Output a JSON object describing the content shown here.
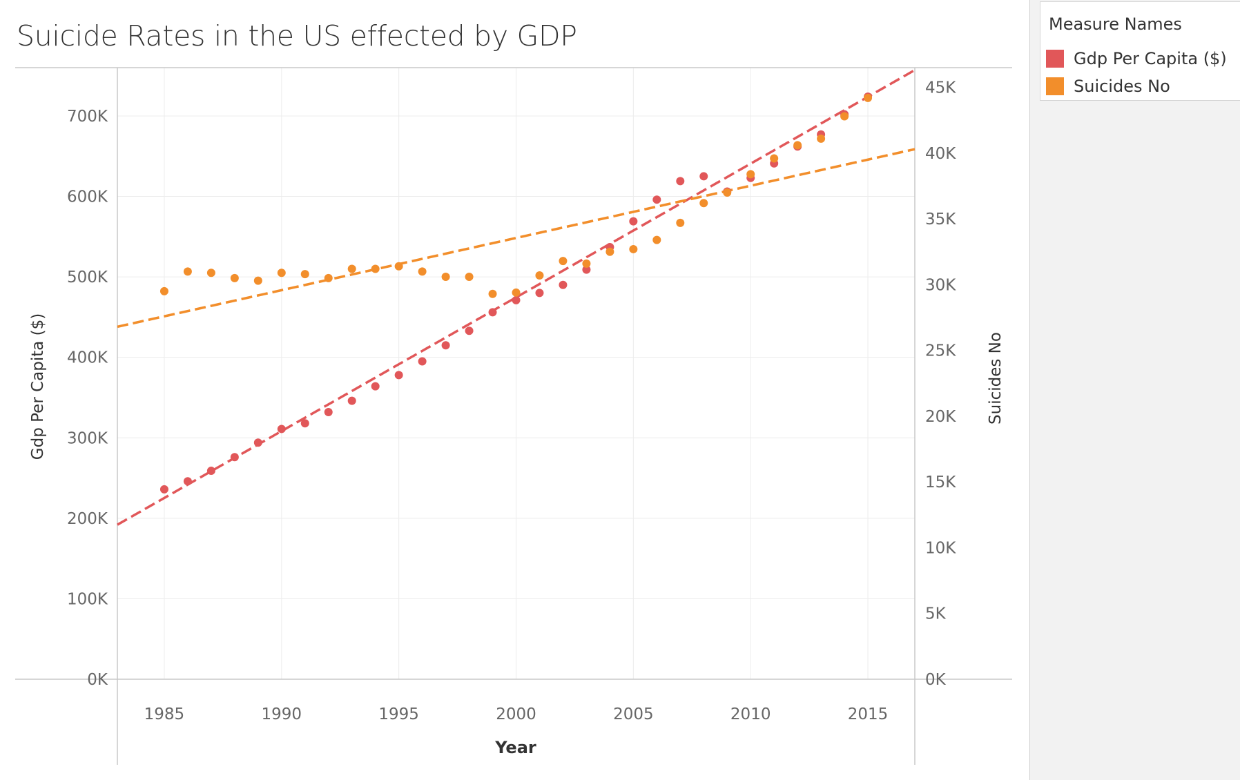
{
  "colors": {
    "gdp": "#e15759",
    "suicides": "#f28e2b",
    "grid": "#ececec",
    "axis": "#c8c8c8",
    "text": "#333333",
    "tick": "#666666"
  },
  "title": "Suicide Rates in the US effected by GDP",
  "legend": {
    "title": "Measure Names",
    "items": [
      {
        "key": "gdp",
        "label": "Gdp Per Capita ($)"
      },
      {
        "key": "suicides",
        "label": "Suicides No"
      }
    ]
  },
  "chart_data": {
    "type": "scatter",
    "title": "Suicide Rates in the US effected by GDP",
    "xlabel": "Year",
    "ylabel_left": "Gdp Per Capita ($)",
    "ylabel_right": "Suicides No",
    "xlim": [
      1983,
      2017
    ],
    "x_ticks": [
      1985,
      1990,
      1995,
      2000,
      2005,
      2010,
      2015
    ],
    "ylim_left": [
      0,
      760000
    ],
    "y_ticks_left": [
      0,
      100000,
      200000,
      300000,
      400000,
      500000,
      600000,
      700000
    ],
    "y_tick_labels_left": [
      "0K",
      "100K",
      "200K",
      "300K",
      "400K",
      "500K",
      "600K",
      "700K"
    ],
    "ylim_right": [
      0,
      46500
    ],
    "y_ticks_right": [
      0,
      5000,
      10000,
      15000,
      20000,
      25000,
      30000,
      35000,
      40000,
      45000
    ],
    "y_tick_labels_right": [
      "0K",
      "5K",
      "10K",
      "15K",
      "20K",
      "25K",
      "30K",
      "35K",
      "40K",
      "45K"
    ],
    "grid": true,
    "legend_position": "right",
    "x": [
      1985,
      1986,
      1987,
      1988,
      1989,
      1990,
      1991,
      1992,
      1993,
      1994,
      1995,
      1996,
      1997,
      1998,
      1999,
      2000,
      2001,
      2002,
      2003,
      2004,
      2005,
      2006,
      2007,
      2008,
      2009,
      2010,
      2011,
      2012,
      2013,
      2014,
      2015
    ],
    "series": [
      {
        "name": "Gdp Per Capita ($)",
        "axis": "left",
        "color": "#e15759",
        "values": [
          236000,
          246000,
          259000,
          276000,
          294000,
          311000,
          318000,
          332000,
          346000,
          364000,
          378000,
          395000,
          415000,
          433000,
          456000,
          471000,
          480000,
          490000,
          509000,
          537000,
          569000,
          596000,
          619000,
          625000,
          606000,
          623000,
          641000,
          662000,
          677000,
          702000,
          724000
        ],
        "trend": {
          "start": [
            1983,
            192000
          ],
          "end": [
            2017,
            757000
          ]
        }
      },
      {
        "name": "Suicides No",
        "axis": "right",
        "color": "#f28e2b",
        "values": [
          29500,
          31000,
          30900,
          30500,
          30300,
          30900,
          30800,
          30500,
          31200,
          31200,
          31400,
          31000,
          30600,
          30600,
          29300,
          29400,
          30700,
          31800,
          31600,
          32500,
          32700,
          33400,
          34700,
          36200,
          37000,
          38400,
          39600,
          40600,
          41100,
          42800,
          44200
        ],
        "trend": {
          "start": [
            1983,
            26800
          ],
          "end": [
            2017,
            40300
          ]
        }
      }
    ]
  }
}
